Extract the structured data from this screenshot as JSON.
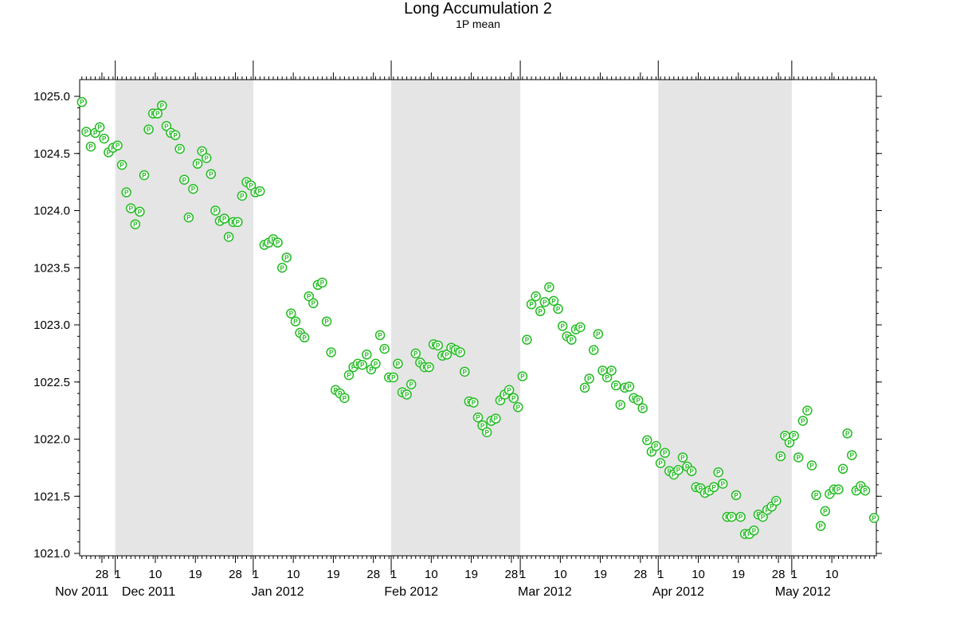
{
  "chart_data": {
    "type": "scatter",
    "title": "Long Accumulation 2",
    "subtitle": "1P mean",
    "marker_label": "P",
    "colors": {
      "marker": "#22bb22",
      "shade": "#e5e5e5",
      "axis": "#000000"
    },
    "x_range": [
      "2011-11-23",
      "2012-05-19"
    ],
    "ylim": [
      1021.0,
      1025.0
    ],
    "y_ticks": [
      1021.0,
      1021.5,
      1022.0,
      1022.5,
      1023.0,
      1023.5,
      1024.0,
      1024.5,
      1025.0
    ],
    "y_tick_labels": [
      "1021.0",
      "1021.5",
      "1022.0",
      "1022.5",
      "1023.0",
      "1023.5",
      "1024.0",
      "1024.5",
      "1025.0"
    ],
    "x_ticks": [
      {
        "date": "2011-11-28",
        "label": "28"
      },
      {
        "date": "2011-12-01",
        "label": "1"
      },
      {
        "date": "2011-12-10",
        "label": "10"
      },
      {
        "date": "2011-12-19",
        "label": "19"
      },
      {
        "date": "2011-12-28",
        "label": "28"
      },
      {
        "date": "2012-01-01",
        "label": "1"
      },
      {
        "date": "2012-01-10",
        "label": "10"
      },
      {
        "date": "2012-01-19",
        "label": "19"
      },
      {
        "date": "2012-01-28",
        "label": "28"
      },
      {
        "date": "2012-02-01",
        "label": "1"
      },
      {
        "date": "2012-02-10",
        "label": "10"
      },
      {
        "date": "2012-02-19",
        "label": "19"
      },
      {
        "date": "2012-02-28",
        "label": "28"
      },
      {
        "date": "2012-03-01",
        "label": "1"
      },
      {
        "date": "2012-03-10",
        "label": "10"
      },
      {
        "date": "2012-03-19",
        "label": "19"
      },
      {
        "date": "2012-03-28",
        "label": "28"
      },
      {
        "date": "2012-04-01",
        "label": "1"
      },
      {
        "date": "2012-04-10",
        "label": "10"
      },
      {
        "date": "2012-04-19",
        "label": "19"
      },
      {
        "date": "2012-04-28",
        "label": "28"
      },
      {
        "date": "2012-05-01",
        "label": "1"
      },
      {
        "date": "2012-05-10",
        "label": "10"
      }
    ],
    "month_labels": [
      {
        "date": "2011-11-23",
        "label": "Nov 2011"
      },
      {
        "date": "2011-12-08",
        "label": "Dec 2011"
      },
      {
        "date": "2012-01-06",
        "label": "Jan 2012"
      },
      {
        "date": "2012-02-05",
        "label": "Feb 2012"
      },
      {
        "date": "2012-03-06",
        "label": "Mar 2012"
      },
      {
        "date": "2012-04-05",
        "label": "Apr 2012"
      },
      {
        "date": "2012-05-03",
        "label": "May 2012"
      }
    ],
    "shaded_months": [
      {
        "start": "2011-12-01",
        "end": "2012-01-01"
      },
      {
        "start": "2012-02-01",
        "end": "2012-03-01"
      },
      {
        "start": "2012-04-01",
        "end": "2012-05-01"
      }
    ],
    "grid": false,
    "points": [
      {
        "x": "2011-11-23",
        "y": 1024.95
      },
      {
        "x": "2011-11-24",
        "y": 1024.69
      },
      {
        "x": "2011-11-25",
        "y": 1024.56
      },
      {
        "x": "2011-11-26",
        "y": 1024.68
      },
      {
        "x": "2011-11-27",
        "y": 1024.73
      },
      {
        "x": "2011-11-28",
        "y": 1024.63
      },
      {
        "x": "2011-11-29",
        "y": 1024.51
      },
      {
        "x": "2011-11-30",
        "y": 1024.55
      },
      {
        "x": "2011-12-01",
        "y": 1024.57
      },
      {
        "x": "2011-12-02",
        "y": 1024.4
      },
      {
        "x": "2011-12-03",
        "y": 1024.16
      },
      {
        "x": "2011-12-04",
        "y": 1024.02
      },
      {
        "x": "2011-12-05",
        "y": 1023.88
      },
      {
        "x": "2011-12-06",
        "y": 1023.99
      },
      {
        "x": "2011-12-07",
        "y": 1024.31
      },
      {
        "x": "2011-12-08",
        "y": 1024.71
      },
      {
        "x": "2011-12-09",
        "y": 1024.85
      },
      {
        "x": "2011-12-10",
        "y": 1024.85
      },
      {
        "x": "2011-12-11",
        "y": 1024.92
      },
      {
        "x": "2011-12-12",
        "y": 1024.74
      },
      {
        "x": "2011-12-13",
        "y": 1024.68
      },
      {
        "x": "2011-12-14",
        "y": 1024.66
      },
      {
        "x": "2011-12-15",
        "y": 1024.54
      },
      {
        "x": "2011-12-16",
        "y": 1024.27
      },
      {
        "x": "2011-12-17",
        "y": 1023.94
      },
      {
        "x": "2011-12-18",
        "y": 1024.19
      },
      {
        "x": "2011-12-19",
        "y": 1024.41
      },
      {
        "x": "2011-12-20",
        "y": 1024.52
      },
      {
        "x": "2011-12-21",
        "y": 1024.46
      },
      {
        "x": "2011-12-22",
        "y": 1024.32
      },
      {
        "x": "2011-12-23",
        "y": 1024.0
      },
      {
        "x": "2011-12-24",
        "y": 1023.91
      },
      {
        "x": "2011-12-25",
        "y": 1023.93
      },
      {
        "x": "2011-12-26",
        "y": 1023.77
      },
      {
        "x": "2011-12-27",
        "y": 1023.9
      },
      {
        "x": "2011-12-28",
        "y": 1023.9
      },
      {
        "x": "2011-12-29",
        "y": 1024.13
      },
      {
        "x": "2011-12-30",
        "y": 1024.25
      },
      {
        "x": "2011-12-31",
        "y": 1024.22
      },
      {
        "x": "2012-01-01",
        "y": 1024.16
      },
      {
        "x": "2012-01-02",
        "y": 1024.17
      },
      {
        "x": "2012-01-03",
        "y": 1023.7
      },
      {
        "x": "2012-01-04",
        "y": 1023.72
      },
      {
        "x": "2012-01-05",
        "y": 1023.75
      },
      {
        "x": "2012-01-06",
        "y": 1023.72
      },
      {
        "x": "2012-01-07",
        "y": 1023.5
      },
      {
        "x": "2012-01-08",
        "y": 1023.59
      },
      {
        "x": "2012-01-09",
        "y": 1023.1
      },
      {
        "x": "2012-01-10",
        "y": 1023.03
      },
      {
        "x": "2012-01-11",
        "y": 1022.93
      },
      {
        "x": "2012-01-12",
        "y": 1022.89
      },
      {
        "x": "2012-01-13",
        "y": 1023.25
      },
      {
        "x": "2012-01-14",
        "y": 1023.19
      },
      {
        "x": "2012-01-15",
        "y": 1023.35
      },
      {
        "x": "2012-01-16",
        "y": 1023.37
      },
      {
        "x": "2012-01-17",
        "y": 1023.03
      },
      {
        "x": "2012-01-18",
        "y": 1022.76
      },
      {
        "x": "2012-01-19",
        "y": 1022.43
      },
      {
        "x": "2012-01-20",
        "y": 1022.4
      },
      {
        "x": "2012-01-21",
        "y": 1022.36
      },
      {
        "x": "2012-01-22",
        "y": 1022.56
      },
      {
        "x": "2012-01-23",
        "y": 1022.63
      },
      {
        "x": "2012-01-24",
        "y": 1022.66
      },
      {
        "x": "2012-01-25",
        "y": 1022.65
      },
      {
        "x": "2012-01-26",
        "y": 1022.74
      },
      {
        "x": "2012-01-27",
        "y": 1022.61
      },
      {
        "x": "2012-01-28",
        "y": 1022.66
      },
      {
        "x": "2012-01-29",
        "y": 1022.91
      },
      {
        "x": "2012-01-30",
        "y": 1022.79
      },
      {
        "x": "2012-01-31",
        "y": 1022.54
      },
      {
        "x": "2012-02-01",
        "y": 1022.54
      },
      {
        "x": "2012-02-02",
        "y": 1022.66
      },
      {
        "x": "2012-02-03",
        "y": 1022.41
      },
      {
        "x": "2012-02-04",
        "y": 1022.39
      },
      {
        "x": "2012-02-05",
        "y": 1022.48
      },
      {
        "x": "2012-02-06",
        "y": 1022.75
      },
      {
        "x": "2012-02-07",
        "y": 1022.67
      },
      {
        "x": "2012-02-08",
        "y": 1022.63
      },
      {
        "x": "2012-02-09",
        "y": 1022.63
      },
      {
        "x": "2012-02-10",
        "y": 1022.83
      },
      {
        "x": "2012-02-11",
        "y": 1022.82
      },
      {
        "x": "2012-02-12",
        "y": 1022.73
      },
      {
        "x": "2012-02-13",
        "y": 1022.74
      },
      {
        "x": "2012-02-14",
        "y": 1022.8
      },
      {
        "x": "2012-02-15",
        "y": 1022.78
      },
      {
        "x": "2012-02-16",
        "y": 1022.76
      },
      {
        "x": "2012-02-17",
        "y": 1022.59
      },
      {
        "x": "2012-02-18",
        "y": 1022.33
      },
      {
        "x": "2012-02-19",
        "y": 1022.32
      },
      {
        "x": "2012-02-20",
        "y": 1022.19
      },
      {
        "x": "2012-02-21",
        "y": 1022.12
      },
      {
        "x": "2012-02-22",
        "y": 1022.06
      },
      {
        "x": "2012-02-23",
        "y": 1022.16
      },
      {
        "x": "2012-02-24",
        "y": 1022.18
      },
      {
        "x": "2012-02-25",
        "y": 1022.34
      },
      {
        "x": "2012-02-26",
        "y": 1022.39
      },
      {
        "x": "2012-02-27",
        "y": 1022.43
      },
      {
        "x": "2012-02-28",
        "y": 1022.36
      },
      {
        "x": "2012-02-29",
        "y": 1022.28
      },
      {
        "x": "2012-03-01",
        "y": 1022.55
      },
      {
        "x": "2012-03-02",
        "y": 1022.87
      },
      {
        "x": "2012-03-03",
        "y": 1023.18
      },
      {
        "x": "2012-03-04",
        "y": 1023.25
      },
      {
        "x": "2012-03-05",
        "y": 1023.12
      },
      {
        "x": "2012-03-06",
        "y": 1023.2
      },
      {
        "x": "2012-03-07",
        "y": 1023.33
      },
      {
        "x": "2012-03-08",
        "y": 1023.21
      },
      {
        "x": "2012-03-09",
        "y": 1023.14
      },
      {
        "x": "2012-03-10",
        "y": 1022.99
      },
      {
        "x": "2012-03-11",
        "y": 1022.9
      },
      {
        "x": "2012-03-12",
        "y": 1022.87
      },
      {
        "x": "2012-03-13",
        "y": 1022.96
      },
      {
        "x": "2012-03-14",
        "y": 1022.98
      },
      {
        "x": "2012-03-15",
        "y": 1022.45
      },
      {
        "x": "2012-03-16",
        "y": 1022.53
      },
      {
        "x": "2012-03-17",
        "y": 1022.78
      },
      {
        "x": "2012-03-18",
        "y": 1022.92
      },
      {
        "x": "2012-03-19",
        "y": 1022.6
      },
      {
        "x": "2012-03-20",
        "y": 1022.54
      },
      {
        "x": "2012-03-21",
        "y": 1022.6
      },
      {
        "x": "2012-03-22",
        "y": 1022.47
      },
      {
        "x": "2012-03-23",
        "y": 1022.3
      },
      {
        "x": "2012-03-24",
        "y": 1022.45
      },
      {
        "x": "2012-03-25",
        "y": 1022.46
      },
      {
        "x": "2012-03-26",
        "y": 1022.36
      },
      {
        "x": "2012-03-27",
        "y": 1022.34
      },
      {
        "x": "2012-03-28",
        "y": 1022.27
      },
      {
        "x": "2012-03-29",
        "y": 1021.99
      },
      {
        "x": "2012-03-30",
        "y": 1021.89
      },
      {
        "x": "2012-03-31",
        "y": 1021.94
      },
      {
        "x": "2012-04-01",
        "y": 1021.79
      },
      {
        "x": "2012-04-02",
        "y": 1021.88
      },
      {
        "x": "2012-04-03",
        "y": 1021.72
      },
      {
        "x": "2012-04-04",
        "y": 1021.69
      },
      {
        "x": "2012-04-05",
        "y": 1021.73
      },
      {
        "x": "2012-04-06",
        "y": 1021.84
      },
      {
        "x": "2012-04-07",
        "y": 1021.76
      },
      {
        "x": "2012-04-08",
        "y": 1021.72
      },
      {
        "x": "2012-04-09",
        "y": 1021.58
      },
      {
        "x": "2012-04-10",
        "y": 1021.57
      },
      {
        "x": "2012-04-11",
        "y": 1021.53
      },
      {
        "x": "2012-04-12",
        "y": 1021.55
      },
      {
        "x": "2012-04-13",
        "y": 1021.58
      },
      {
        "x": "2012-04-14",
        "y": 1021.71
      },
      {
        "x": "2012-04-15",
        "y": 1021.61
      },
      {
        "x": "2012-04-16",
        "y": 1021.32
      },
      {
        "x": "2012-04-17",
        "y": 1021.32
      },
      {
        "x": "2012-04-18",
        "y": 1021.51
      },
      {
        "x": "2012-04-19",
        "y": 1021.32
      },
      {
        "x": "2012-04-20",
        "y": 1021.17
      },
      {
        "x": "2012-04-21",
        "y": 1021.17
      },
      {
        "x": "2012-04-22",
        "y": 1021.2
      },
      {
        "x": "2012-04-23",
        "y": 1021.34
      },
      {
        "x": "2012-04-24",
        "y": 1021.32
      },
      {
        "x": "2012-04-25",
        "y": 1021.38
      },
      {
        "x": "2012-04-26",
        "y": 1021.41
      },
      {
        "x": "2012-04-27",
        "y": 1021.46
      },
      {
        "x": "2012-04-28",
        "y": 1021.85
      },
      {
        "x": "2012-04-29",
        "y": 1022.03
      },
      {
        "x": "2012-04-30",
        "y": 1021.97
      },
      {
        "x": "2012-05-01",
        "y": 1022.03
      },
      {
        "x": "2012-05-02",
        "y": 1021.84
      },
      {
        "x": "2012-05-03",
        "y": 1022.16
      },
      {
        "x": "2012-05-04",
        "y": 1022.25
      },
      {
        "x": "2012-05-05",
        "y": 1021.77
      },
      {
        "x": "2012-05-06",
        "y": 1021.51
      },
      {
        "x": "2012-05-07",
        "y": 1021.24
      },
      {
        "x": "2012-05-08",
        "y": 1021.37
      },
      {
        "x": "2012-05-09",
        "y": 1021.52
      },
      {
        "x": "2012-05-10",
        "y": 1021.56
      },
      {
        "x": "2012-05-11",
        "y": 1021.56
      },
      {
        "x": "2012-05-12",
        "y": 1021.74
      },
      {
        "x": "2012-05-13",
        "y": 1022.05
      },
      {
        "x": "2012-05-14",
        "y": 1021.86
      },
      {
        "x": "2012-05-15",
        "y": 1021.55
      },
      {
        "x": "2012-05-16",
        "y": 1021.59
      },
      {
        "x": "2012-05-17",
        "y": 1021.55
      },
      {
        "x": "2012-05-19",
        "y": 1021.31
      }
    ]
  }
}
